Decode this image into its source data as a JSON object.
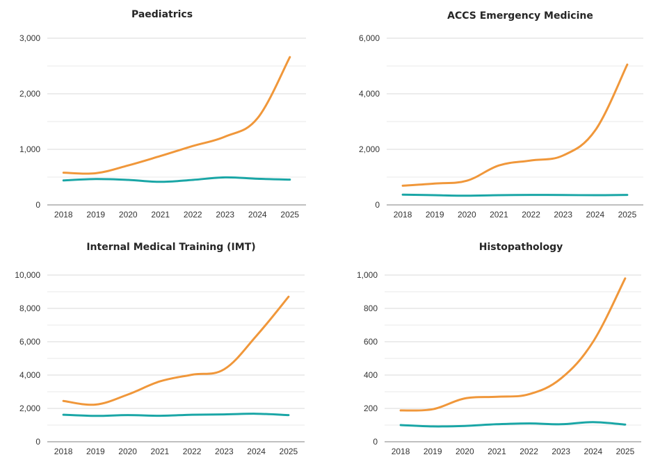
{
  "chart_data": [
    {
      "type": "line",
      "title": "Paediatrics",
      "categories": [
        "2018",
        "2019",
        "2020",
        "2021",
        "2022",
        "2023",
        "2024",
        "2025"
      ],
      "ylim": [
        0,
        3000
      ],
      "yticks": [
        0,
        1000,
        2000,
        3000
      ],
      "ytick_labels": [
        "0",
        "1,000",
        "2,000",
        "3,000"
      ],
      "grid": true,
      "series": [
        {
          "color": "#f0973a",
          "values": [
            580,
            570,
            710,
            880,
            1060,
            1230,
            1560,
            2660
          ]
        },
        {
          "color": "#1aa6a6",
          "values": [
            440,
            465,
            450,
            415,
            450,
            495,
            470,
            455
          ]
        }
      ]
    },
    {
      "type": "line",
      "title": "ACCS Emergency Medicine",
      "categories": [
        "2018",
        "2019",
        "2020",
        "2021",
        "2022",
        "2023",
        "2024",
        "2025"
      ],
      "ylim": [
        0,
        6000
      ],
      "yticks": [
        0,
        2000,
        4000,
        6000
      ],
      "ytick_labels": [
        "0",
        "2,000",
        "4,000",
        "6,000"
      ],
      "grid": true,
      "series": [
        {
          "color": "#f0973a",
          "values": [
            690,
            770,
            870,
            1420,
            1600,
            1780,
            2680,
            5050
          ]
        },
        {
          "color": "#1aa6a6",
          "values": [
            370,
            350,
            330,
            350,
            360,
            355,
            350,
            360
          ]
        }
      ]
    },
    {
      "type": "line",
      "title": "Internal Medical Training (IMT)",
      "categories": [
        "2018",
        "2019",
        "2020",
        "2021",
        "2022",
        "2023",
        "2024",
        "2025"
      ],
      "ylim": [
        0,
        10000
      ],
      "yticks": [
        0,
        2000,
        4000,
        6000,
        8000,
        10000
      ],
      "ytick_labels": [
        "0",
        "2,000",
        "4,000",
        "6,000",
        "8,000",
        "10,000"
      ],
      "grid": true,
      "series": [
        {
          "color": "#f0973a",
          "values": [
            2450,
            2230,
            2830,
            3620,
            4020,
            4350,
            6350,
            8700
          ]
        },
        {
          "color": "#1aa6a6",
          "values": [
            1620,
            1550,
            1600,
            1560,
            1620,
            1640,
            1680,
            1600
          ]
        }
      ]
    },
    {
      "type": "line",
      "title": "Histopathology",
      "categories": [
        "2018",
        "2019",
        "2020",
        "2021",
        "2022",
        "2023",
        "2024",
        "2025"
      ],
      "ylim": [
        0,
        1000
      ],
      "yticks": [
        0,
        200,
        400,
        600,
        800,
        1000
      ],
      "ytick_labels": [
        "0",
        "200",
        "400",
        "600",
        "800",
        "1,000"
      ],
      "grid": true,
      "series": [
        {
          "color": "#f0973a",
          "values": [
            188,
            195,
            260,
            270,
            285,
            380,
            600,
            980
          ]
        },
        {
          "color": "#1aa6a6",
          "values": [
            100,
            92,
            95,
            105,
            110,
            105,
            118,
            103
          ]
        }
      ]
    }
  ]
}
